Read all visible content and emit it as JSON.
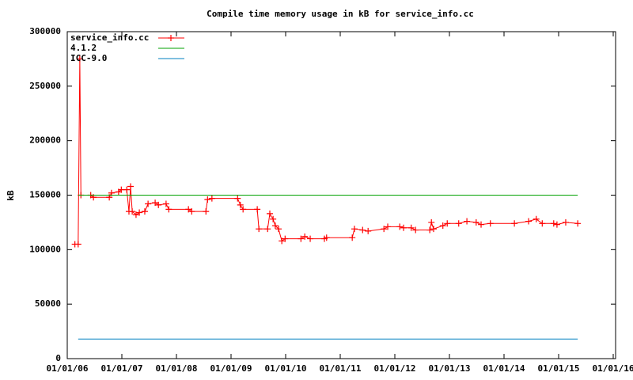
{
  "chart_data": {
    "type": "line",
    "title": "Compile time memory usage in kB for service_info.cc",
    "y_label": "kB",
    "xlim": [
      2006,
      2016
    ],
    "xticks": [
      {
        "value": 2006,
        "label": "01/01/06"
      },
      {
        "value": 2007,
        "label": "01/01/07"
      },
      {
        "value": 2008,
        "label": "01/01/08"
      },
      {
        "value": 2009,
        "label": "01/01/09"
      },
      {
        "value": 2010,
        "label": "01/01/10"
      },
      {
        "value": 2011,
        "label": "01/01/11"
      },
      {
        "value": 2012,
        "label": "01/01/12"
      },
      {
        "value": 2013,
        "label": "01/01/13"
      },
      {
        "value": 2014,
        "label": "01/01/14"
      },
      {
        "value": 2015,
        "label": "01/01/15"
      },
      {
        "value": 2016,
        "label": "01/01/16"
      }
    ],
    "ylim": [
      0,
      300000
    ],
    "yticks": [
      0,
      50000,
      100000,
      150000,
      200000,
      250000,
      300000
    ],
    "legend": "top-left",
    "series": [
      {
        "name": "service_info.cc",
        "color": "#ff0000",
        "marker": "+",
        "x": [
          2006.14,
          2006.2,
          2006.23,
          2006.25,
          2006.43,
          2006.48,
          2006.77,
          2006.81,
          2006.94,
          2006.99,
          2007.09,
          2007.13,
          2007.16,
          2007.19,
          2007.26,
          2007.32,
          2007.42,
          2007.48,
          2007.61,
          2007.67,
          2007.81,
          2007.86,
          2008.22,
          2008.28,
          2008.54,
          2008.57,
          2008.65,
          2009.12,
          2009.17,
          2009.22,
          2009.48,
          2009.51,
          2009.67,
          2009.71,
          2009.77,
          2009.81,
          2009.87,
          2009.93,
          2009.99,
          2010.28,
          2010.35,
          2010.45,
          2010.71,
          2010.75,
          2011.22,
          2011.26,
          2011.41,
          2011.51,
          2011.8,
          2011.87,
          2012.09,
          2012.16,
          2012.3,
          2012.38,
          2012.64,
          2012.67,
          2012.71,
          2012.88,
          2012.96,
          2013.17,
          2013.32,
          2013.49,
          2013.58,
          2013.75,
          2014.19,
          2014.45,
          2014.59,
          2014.7,
          2014.91,
          2014.97,
          2015.13,
          2015.35
        ],
        "values": [
          105000,
          105000,
          275000,
          150000,
          150000,
          148000,
          148000,
          152000,
          153000,
          155000,
          155000,
          135000,
          158000,
          135000,
          132000,
          134000,
          135000,
          142000,
          143000,
          141000,
          142000,
          137000,
          137000,
          135000,
          135000,
          146000,
          147000,
          147000,
          141000,
          137000,
          137000,
          119000,
          119000,
          133000,
          128000,
          122000,
          119000,
          108000,
          110000,
          110000,
          112000,
          110000,
          110000,
          111000,
          111000,
          119000,
          118000,
          117000,
          119000,
          121000,
          121000,
          120000,
          120000,
          118000,
          118000,
          125000,
          119000,
          122000,
          124000,
          124000,
          126000,
          125000,
          123000,
          124000,
          124000,
          126000,
          128000,
          124000,
          124000,
          123000,
          125000,
          124000
        ]
      },
      {
        "name": "4.1.2",
        "color": "#00a000",
        "x": [
          2006.2,
          2015.35
        ],
        "values": [
          150000,
          150000
        ]
      },
      {
        "name": "ICC-9.0",
        "color": "#0080c0",
        "x": [
          2006.2,
          2015.35
        ],
        "values": [
          18000,
          18000
        ]
      }
    ]
  }
}
